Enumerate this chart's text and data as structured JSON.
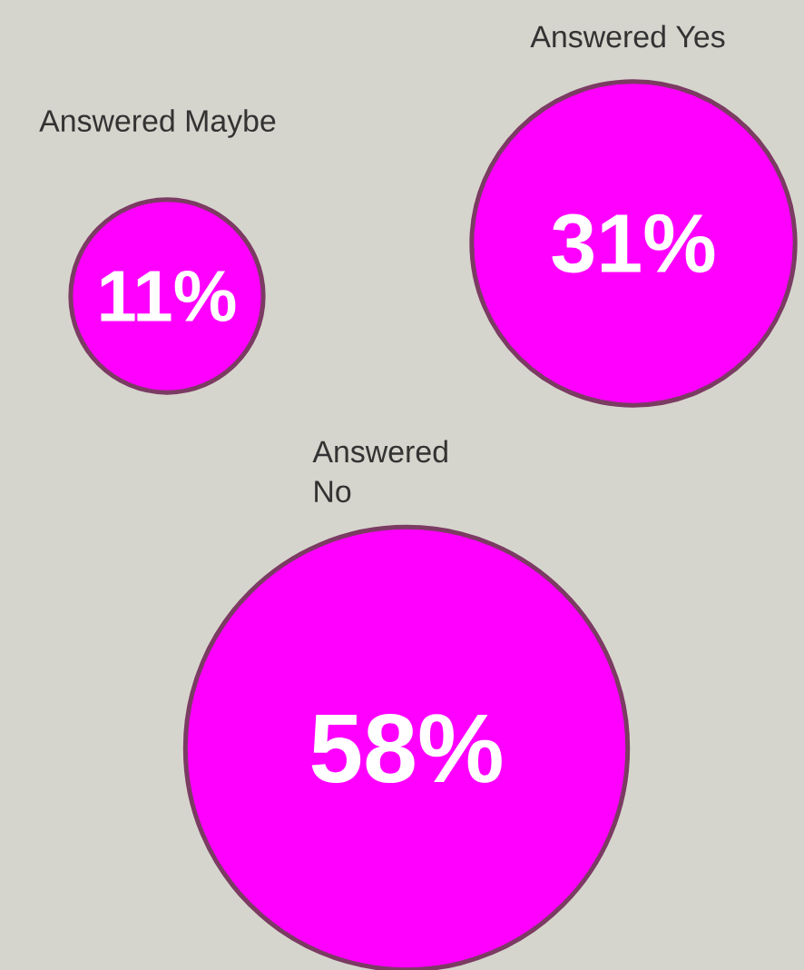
{
  "chart_data": {
    "type": "other",
    "categories": [
      "Answered Maybe",
      "Answered Yes",
      "Answered No"
    ],
    "values": [
      11,
      31,
      58
    ],
    "value_labels": [
      "11%",
      "31%",
      "58%"
    ],
    "color": "#ff00ff"
  }
}
